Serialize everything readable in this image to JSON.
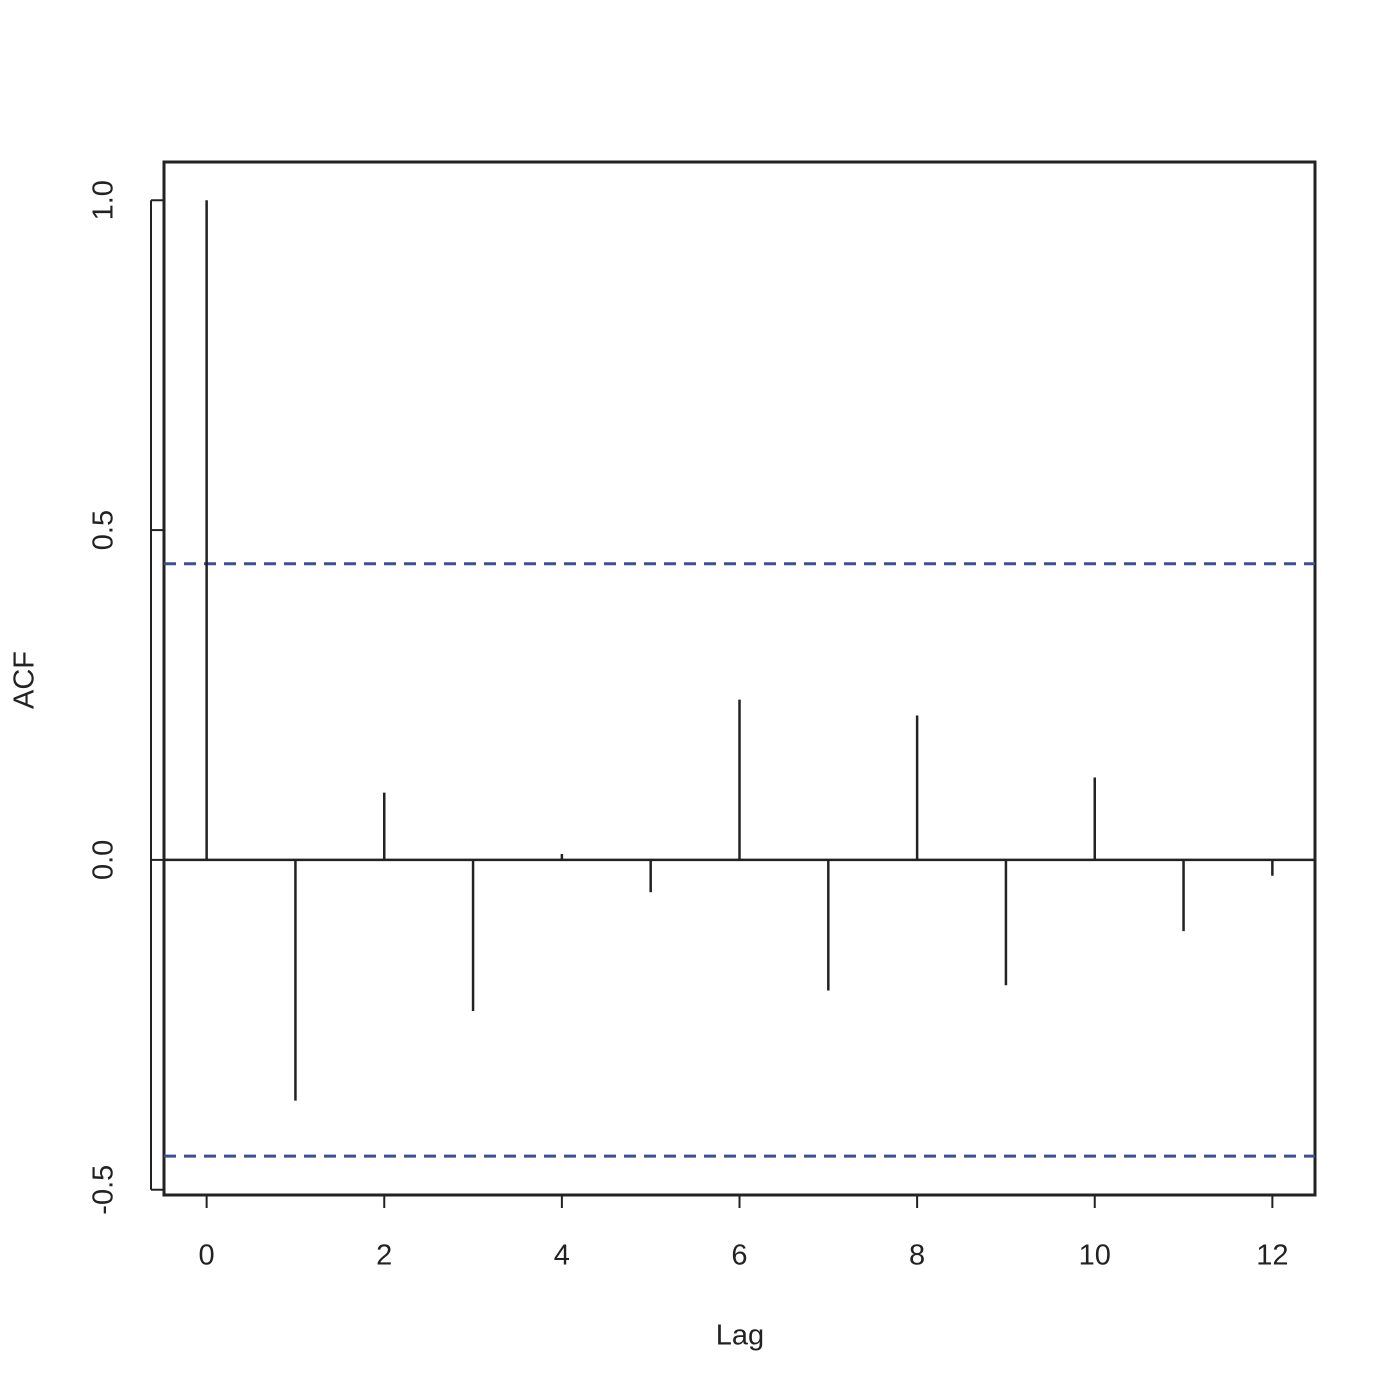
{
  "chart_data": {
    "type": "stem",
    "x_label": "Lag",
    "y_label": "ACF",
    "x": [
      0,
      1,
      2,
      3,
      4,
      5,
      6,
      7,
      8,
      9,
      10,
      11,
      12
    ],
    "values": [
      1.0,
      -0.365,
      0.102,
      -0.229,
      0.009,
      -0.049,
      0.243,
      -0.198,
      0.219,
      -0.19,
      0.125,
      -0.108,
      -0.024
    ],
    "color": "#222222",
    "ci_lines": [
      0.449,
      -0.449
    ],
    "ci_color": "#3c4f92",
    "xlim": [
      -0.48,
      12.48
    ],
    "ylim": [
      -0.508,
      1.058
    ],
    "xticks": [
      0,
      2,
      4,
      6,
      8,
      10,
      12
    ],
    "yticks": [
      -0.5,
      {
        "value": 0,
        "label": "0.0"
      },
      0.5,
      {
        "value": 1,
        "label": "1.0"
      }
    ]
  }
}
